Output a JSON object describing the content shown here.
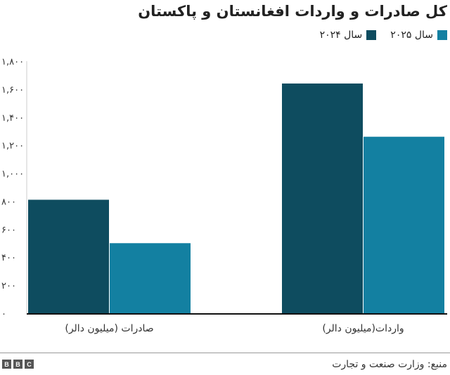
{
  "chart_data": {
    "type": "bar",
    "title": "کل صادرات و واردات افغانستان و پاکستان",
    "categories": [
      "صادرات (میلیون دالر)",
      "واردات(میلیون دالر)"
    ],
    "series": [
      {
        "name": "سال ۲۰۲۴",
        "color": "#0e4c5f",
        "values": [
          810,
          1640
        ]
      },
      {
        "name": "سال ۲۰۲۵",
        "color": "#1380a1",
        "values": [
          500,
          1260
        ]
      }
    ],
    "ylim": [
      0,
      1800
    ],
    "yticks": [
      0,
      200,
      400,
      600,
      800,
      1000,
      1200,
      1400,
      1600,
      1800
    ],
    "ytick_labels": [
      "۰",
      "۲۰۰",
      "۴۰۰",
      "۶۰۰",
      "۸۰۰",
      "۱,۰۰۰",
      "۱,۲۰۰",
      "۱,۴۰۰",
      "۱,۶۰۰",
      "۱,۸۰۰"
    ],
    "legend_order": [
      1,
      0
    ],
    "legend_position": "top-right",
    "grid": false
  },
  "footer": {
    "source": "منبع: وزارت صنعت و تجارت",
    "logo": "BBC"
  }
}
